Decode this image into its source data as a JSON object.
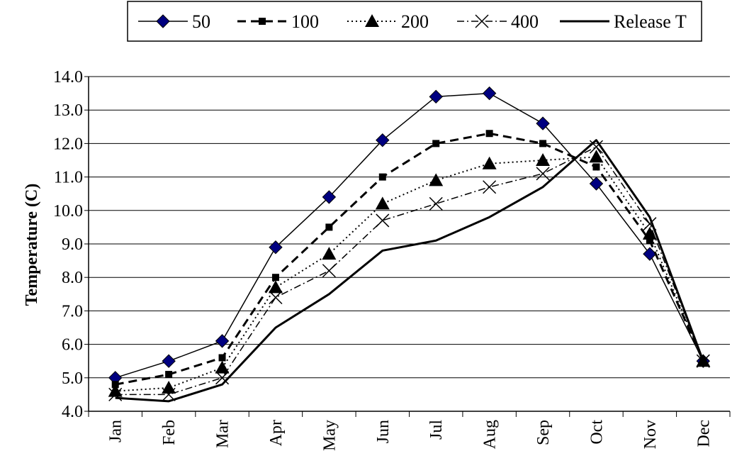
{
  "chart_data": {
    "type": "line",
    "title": "",
    "xlabel": "",
    "ylabel": "Temperature (C)",
    "categories": [
      "Jan",
      "Feb",
      "Mar",
      "Apr",
      "May",
      "Jun",
      "Jul",
      "Aug",
      "Sep",
      "Oct",
      "Nov",
      "Dec"
    ],
    "ylim": [
      4.0,
      14.0
    ],
    "yticks": [
      "4.0",
      "5.0",
      "6.0",
      "7.0",
      "8.0",
      "9.0",
      "10.0",
      "11.0",
      "12.0",
      "13.0",
      "14.0"
    ],
    "grid": "horizontal",
    "legend_position": "top",
    "series": [
      {
        "name": "50",
        "marker": "diamond",
        "line_style": "solid-thin",
        "color": "#000080",
        "values": [
          5.0,
          5.5,
          6.1,
          8.9,
          10.4,
          12.1,
          13.4,
          13.5,
          12.6,
          10.8,
          8.7,
          5.5
        ]
      },
      {
        "name": "100",
        "marker": "square",
        "line_style": "dashed",
        "color": "#000000",
        "values": [
          4.8,
          5.1,
          5.6,
          8.0,
          9.5,
          11.0,
          12.0,
          12.3,
          12.0,
          11.3,
          9.1,
          5.5
        ]
      },
      {
        "name": "200",
        "marker": "triangle",
        "line_style": "dotted",
        "color": "#000000",
        "values": [
          4.6,
          4.7,
          5.3,
          7.7,
          8.7,
          10.2,
          10.9,
          11.4,
          11.5,
          11.6,
          9.3,
          5.5
        ]
      },
      {
        "name": "400",
        "marker": "x",
        "line_style": "dash-dot",
        "color": "#000000",
        "values": [
          4.5,
          4.5,
          5.0,
          7.4,
          8.2,
          9.7,
          10.2,
          10.7,
          11.1,
          11.9,
          9.6,
          5.5
        ]
      },
      {
        "name": "Release T",
        "marker": "none",
        "line_style": "solid-thick",
        "color": "#000000",
        "values": [
          4.4,
          4.3,
          4.8,
          6.5,
          7.5,
          8.8,
          9.1,
          9.8,
          10.7,
          12.1,
          9.8,
          5.5
        ]
      }
    ]
  }
}
